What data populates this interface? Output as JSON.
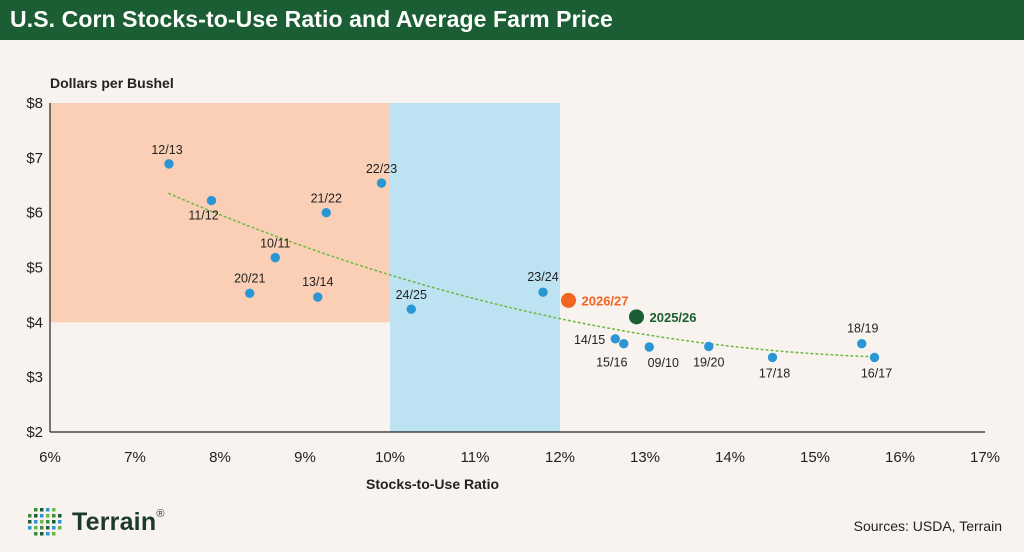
{
  "title": "U.S. Corn Stocks-to-Use Ratio and Average Farm Price",
  "sources": "Sources: USDA, Terrain",
  "logo": {
    "name": "Terrain",
    "mark": "®"
  },
  "colors": {
    "title_bg": "#1c5e33",
    "background": "#f8f3ee",
    "region_high_price": "#fbcfb6",
    "region_mid": "#bde2f1",
    "point": "#2a97d4",
    "point_2026": "#f26522",
    "point_2025": "#1c5e33",
    "trend": "#6dbb45",
    "label_2026": "#f26522",
    "label_2025": "#1c5e33"
  },
  "chart_data": {
    "type": "scatter",
    "xlabel": "Stocks-to-Use Ratio",
    "ylabel": "Dollars per Bushel",
    "xlim": [
      6,
      17
    ],
    "ylim": [
      2,
      8
    ],
    "x_ticks": [
      6,
      7,
      8,
      9,
      10,
      11,
      12,
      13,
      14,
      15,
      16,
      17
    ],
    "x_tick_labels": [
      "6%",
      "7%",
      "8%",
      "9%",
      "10%",
      "11%",
      "12%",
      "13%",
      "14%",
      "15%",
      "16%",
      "17%"
    ],
    "y_ticks": [
      2,
      3,
      4,
      5,
      6,
      7,
      8
    ],
    "y_tick_labels": [
      "$2",
      "$3",
      "$4",
      "$5",
      "$6",
      "$7",
      "$8"
    ],
    "regions": [
      {
        "x": [
          6,
          10
        ],
        "y": [
          4,
          8
        ],
        "color": "#fbcfb6"
      },
      {
        "x": [
          10,
          12
        ],
        "y": [
          2,
          8
        ],
        "color": "#bde2f1"
      }
    ],
    "points": [
      {
        "label": "12/13",
        "x": 7.4,
        "y": 6.89
      },
      {
        "label": "11/12",
        "x": 7.9,
        "y": 6.22
      },
      {
        "label": "10/11",
        "x": 8.65,
        "y": 5.18
      },
      {
        "label": "20/21",
        "x": 8.35,
        "y": 4.53
      },
      {
        "label": "13/14",
        "x": 9.15,
        "y": 4.46
      },
      {
        "label": "21/22",
        "x": 9.25,
        "y": 6.0
      },
      {
        "label": "22/23",
        "x": 9.9,
        "y": 6.54
      },
      {
        "label": "24/25",
        "x": 10.25,
        "y": 4.24
      },
      {
        "label": "23/24",
        "x": 11.8,
        "y": 4.55
      },
      {
        "label": "14/15",
        "x": 12.65,
        "y": 3.7
      },
      {
        "label": "15/16",
        "x": 12.75,
        "y": 3.61
      },
      {
        "label": "09/10",
        "x": 13.05,
        "y": 3.55
      },
      {
        "label": "19/20",
        "x": 13.75,
        "y": 3.56
      },
      {
        "label": "17/18",
        "x": 14.5,
        "y": 3.36
      },
      {
        "label": "18/19",
        "x": 15.55,
        "y": 3.61
      },
      {
        "label": "16/17",
        "x": 15.7,
        "y": 3.36
      }
    ],
    "highlights": [
      {
        "label": "2026/27",
        "x": 12.1,
        "y": 4.4,
        "color": "#f26522"
      },
      {
        "label": "2025/26",
        "x": 12.9,
        "y": 4.1,
        "color": "#1c5e33"
      }
    ],
    "trendline": {
      "style": "dotted",
      "color": "#6dbb45",
      "x_range": [
        7.4,
        15.7
      ]
    },
    "grid": false
  }
}
